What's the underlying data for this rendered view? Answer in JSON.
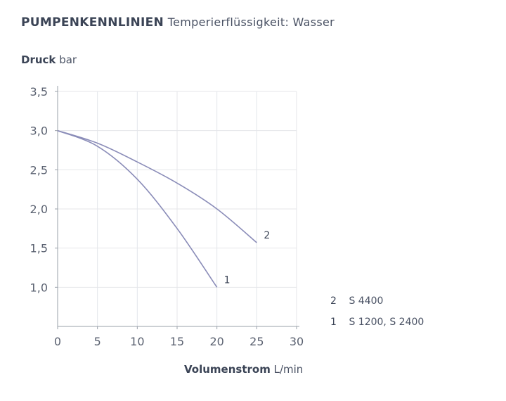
{
  "title": {
    "bold": "PUMPENKENNLINIEN",
    "light": "Temperierflüssigkeit: Wasser"
  },
  "chart_data": {
    "type": "line",
    "title": "PUMPENKENNLINIEN Temperierflüssigkeit: Wasser",
    "ylabel": {
      "bold": "Druck",
      "unit": "bar"
    },
    "xlabel": {
      "bold": "Volumenstrom",
      "unit": "L/min"
    },
    "xlim": [
      0,
      30
    ],
    "ylim": [
      0.5,
      3.5
    ],
    "xticks": [
      0,
      5,
      10,
      15,
      20,
      25,
      30
    ],
    "xtick_labels": [
      "0",
      "5",
      "10",
      "15",
      "20",
      "25",
      "30"
    ],
    "yticks": [
      1.0,
      1.5,
      2.0,
      2.5,
      3.0,
      3.5
    ],
    "ytick_labels": [
      "1,0",
      "1,5",
      "2,0",
      "2,5",
      "3,0",
      "3,5"
    ],
    "grid": true,
    "series": [
      {
        "id": "1",
        "name": "S 1200, S 2400",
        "x": [
          0,
          5,
          10,
          15,
          20
        ],
        "y": [
          3.0,
          2.8,
          2.38,
          1.75,
          1.0
        ]
      },
      {
        "id": "2",
        "name": "S 4400",
        "x": [
          0,
          5,
          10,
          15,
          20,
          25
        ],
        "y": [
          3.0,
          2.84,
          2.6,
          2.33,
          2.0,
          1.57
        ]
      }
    ],
    "legend": [
      {
        "id": "2",
        "label": "S 4400"
      },
      {
        "id": "1",
        "label": "S 1200, S 2400"
      }
    ],
    "line_color": "#8a8cb8",
    "grid_color": "#e4e6ea",
    "axis_color": "#9aa0aa"
  }
}
